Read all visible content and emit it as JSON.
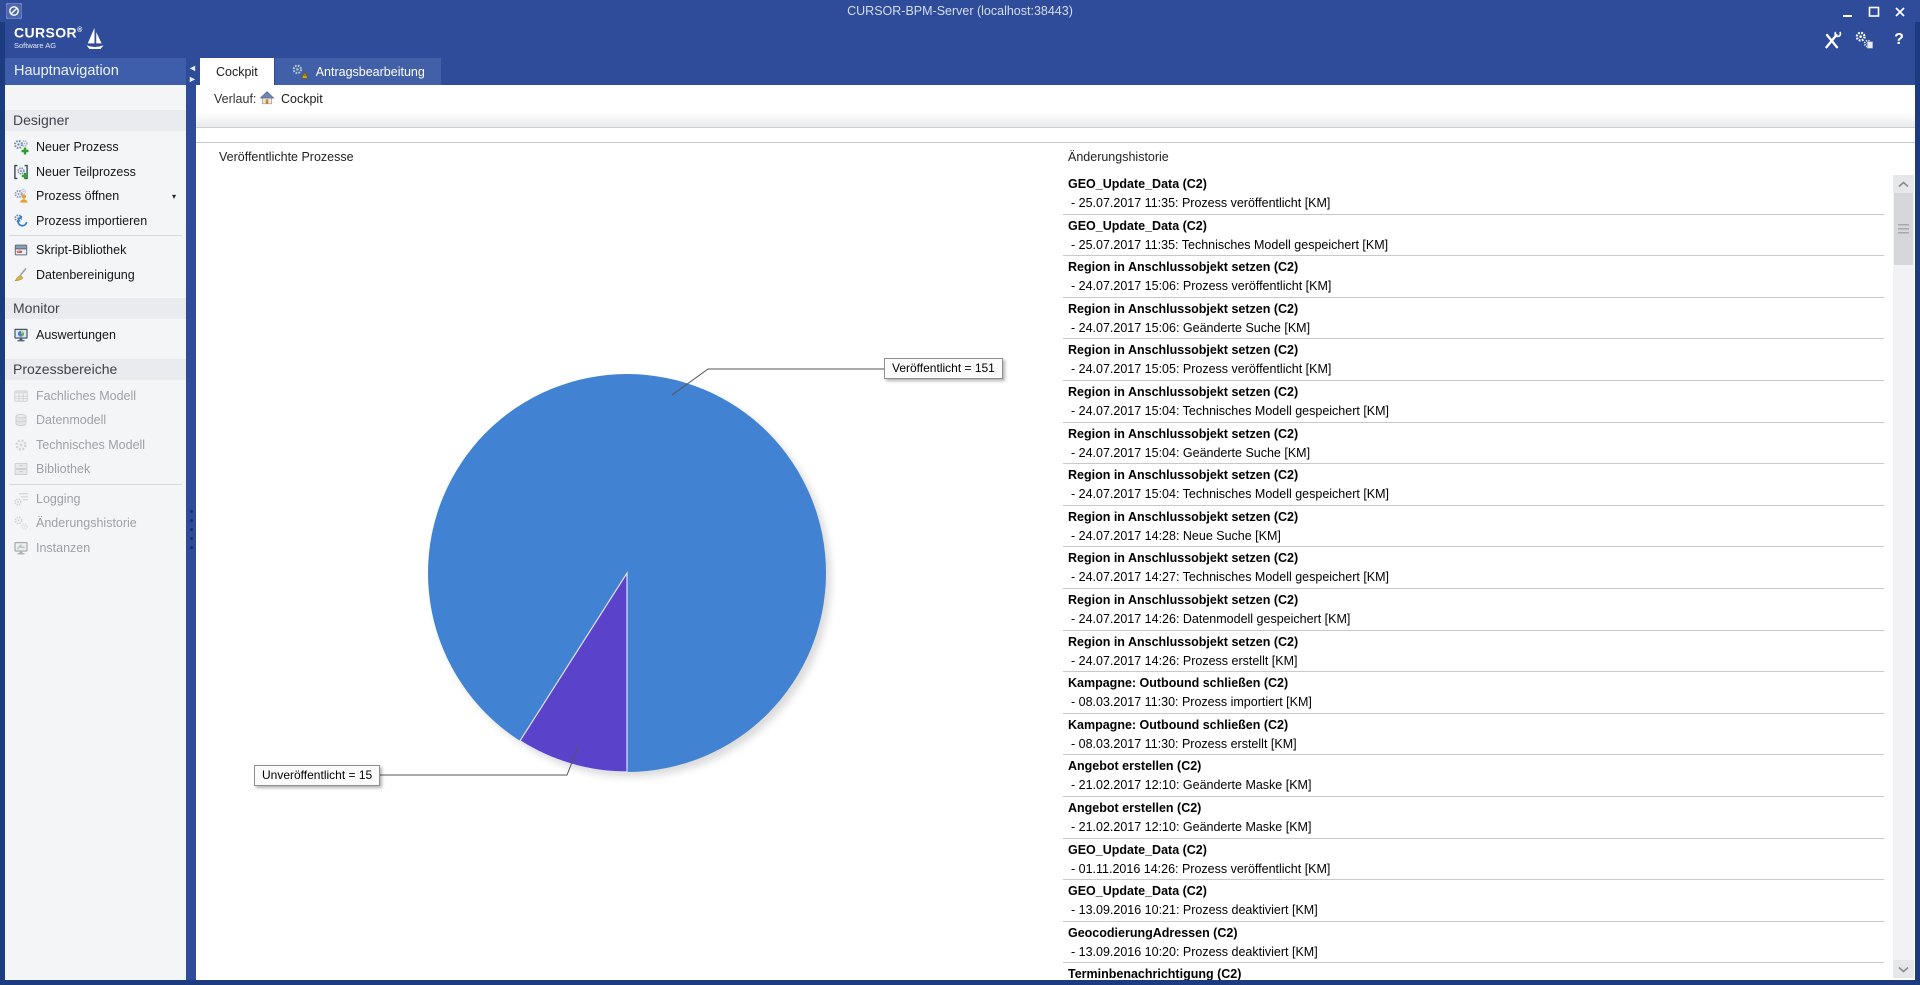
{
  "window": {
    "title": "CURSOR-BPM-Server (localhost:38443)"
  },
  "brand": {
    "name": "CURSOR",
    "registered": "®",
    "subtitle": "Software AG"
  },
  "toolbar": {
    "help_glyph": "?"
  },
  "sidebar": {
    "header": "Hauptnavigation",
    "sections": [
      {
        "title": "Designer",
        "items": [
          {
            "label": "Neuer Prozess",
            "icon": "new-process-icon",
            "disabled": false
          },
          {
            "label": "Neuer Teilprozess",
            "icon": "new-subprocess-icon",
            "disabled": false
          },
          {
            "label": "Prozess öffnen",
            "icon": "open-process-icon",
            "disabled": false,
            "caret": true
          },
          {
            "label": "Prozess importieren",
            "icon": "import-process-icon",
            "disabled": false
          },
          {
            "label": "Skript-Bibliothek",
            "icon": "script-library-icon",
            "disabled": false,
            "dividerBefore": true
          },
          {
            "label": "Datenbereinigung",
            "icon": "data-cleanup-icon",
            "disabled": false
          }
        ]
      },
      {
        "title": "Monitor",
        "items": [
          {
            "label": "Auswertungen",
            "icon": "evaluations-icon",
            "disabled": false
          }
        ]
      },
      {
        "title": "Prozessbereiche",
        "items": [
          {
            "label": "Fachliches Modell",
            "icon": "business-model-icon",
            "disabled": true
          },
          {
            "label": "Datenmodell",
            "icon": "data-model-icon",
            "disabled": true
          },
          {
            "label": "Technisches Modell",
            "icon": "technical-model-icon",
            "disabled": true
          },
          {
            "label": "Bibliothek",
            "icon": "library-icon",
            "disabled": true
          },
          {
            "label": "Logging",
            "icon": "logging-icon",
            "disabled": true,
            "dividerBefore": true
          },
          {
            "label": "Änderungshistorie",
            "icon": "change-history-icon",
            "disabled": true
          },
          {
            "label": "Instanzen",
            "icon": "instances-icon",
            "disabled": true
          }
        ]
      }
    ]
  },
  "tabs": [
    {
      "label": "Cockpit",
      "active": true
    },
    {
      "label": "Antragsbearbeitung",
      "active": false,
      "icon": "process-warning-icon"
    }
  ],
  "breadcrumb": {
    "label": "Verlauf:",
    "current": "Cockpit"
  },
  "chart_panel": {
    "title": "Veröffentlichte Prozesse",
    "published_label": "Veröffentlicht = 151",
    "unpublished_label": "Unveröffentlicht = 15"
  },
  "chart_data": {
    "type": "pie",
    "title": "Veröffentlichte Prozesse",
    "labels": [
      "Veröffentlicht",
      "Unveröffentlicht"
    ],
    "values": [
      151,
      15
    ],
    "colors": [
      "#4282d3",
      "#5b42cb"
    ],
    "annotations": [
      "Veröffentlicht = 151",
      "Unveröffentlicht = 15"
    ],
    "legend_position": "callout-labels"
  },
  "history_panel": {
    "title": "Änderungshistorie",
    "entries": [
      {
        "title": "GEO_Update_Data (C2)",
        "detail": "- 25.07.2017 11:35: Prozess veröffentlicht [KM]"
      },
      {
        "title": "GEO_Update_Data (C2)",
        "detail": "- 25.07.2017 11:35: Technisches Modell gespeichert [KM]"
      },
      {
        "title": "Region in Anschlussobjekt setzen (C2)",
        "detail": "- 24.07.2017 15:06: Prozess veröffentlicht [KM]"
      },
      {
        "title": "Region in Anschlussobjekt setzen (C2)",
        "detail": "- 24.07.2017 15:06: Geänderte Suche [KM]"
      },
      {
        "title": "Region in Anschlussobjekt setzen (C2)",
        "detail": "- 24.07.2017 15:05: Prozess veröffentlicht [KM]"
      },
      {
        "title": "Region in Anschlussobjekt setzen (C2)",
        "detail": "- 24.07.2017 15:04: Technisches Modell gespeichert [KM]"
      },
      {
        "title": "Region in Anschlussobjekt setzen (C2)",
        "detail": "- 24.07.2017 15:04: Geänderte Suche [KM]"
      },
      {
        "title": "Region in Anschlussobjekt setzen (C2)",
        "detail": "- 24.07.2017 15:04: Technisches Modell gespeichert [KM]"
      },
      {
        "title": "Region in Anschlussobjekt setzen (C2)",
        "detail": "- 24.07.2017 14:28: Neue Suche [KM]"
      },
      {
        "title": "Region in Anschlussobjekt setzen (C2)",
        "detail": "- 24.07.2017 14:27: Technisches Modell gespeichert [KM]"
      },
      {
        "title": "Region in Anschlussobjekt setzen (C2)",
        "detail": "- 24.07.2017 14:26: Datenmodell gespeichert [KM]"
      },
      {
        "title": "Region in Anschlussobjekt setzen (C2)",
        "detail": "- 24.07.2017 14:26: Prozess erstellt [KM]"
      },
      {
        "title": "Kampagne: Outbound schließen (C2)",
        "detail": "- 08.03.2017 11:30: Prozess importiert [KM]"
      },
      {
        "title": "Kampagne: Outbound schließen (C2)",
        "detail": "- 08.03.2017 11:30: Prozess erstellt [KM]"
      },
      {
        "title": "Angebot erstellen (C2)",
        "detail": "- 21.02.2017 12:10: Geänderte Maske [KM]"
      },
      {
        "title": "Angebot erstellen (C2)",
        "detail": "- 21.02.2017 12:10: Geänderte Maske [KM]"
      },
      {
        "title": "GEO_Update_Data (C2)",
        "detail": "- 01.11.2016 14:26: Prozess veröffentlicht [KM]"
      },
      {
        "title": "GEO_Update_Data (C2)",
        "detail": "- 13.09.2016 10:21: Prozess deaktiviert [KM]"
      },
      {
        "title": "GeocodierungAdressen (C2)",
        "detail": "- 13.09.2016 10:20: Prozess deaktiviert [KM]"
      },
      {
        "title": "Terminbenachrichtigung (C2)",
        "detail": ""
      }
    ]
  },
  "colors": {
    "frame": "#1d3c80",
    "accent_blue": "#2e4c99",
    "pie_published": "#4282d3",
    "pie_unpublished": "#5b42cb"
  }
}
